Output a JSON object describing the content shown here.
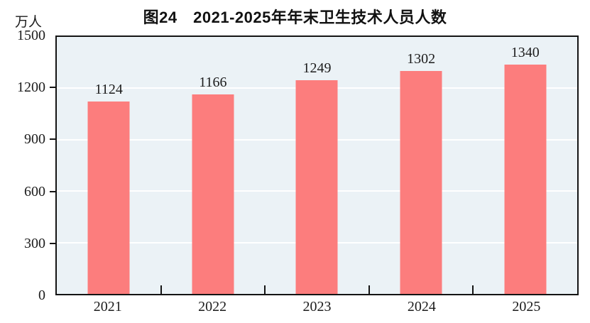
{
  "figure": {
    "title": "图24　2021-2025年年末卫生技术人员人数",
    "unit_label": "万人"
  },
  "chart_data": {
    "type": "bar",
    "title": "图24　2021-2025年年末卫生技术人员人数",
    "categories": [
      "2021",
      "2022",
      "2023",
      "2024",
      "2025"
    ],
    "values": [
      1124,
      1166,
      1249,
      1302,
      1340
    ],
    "data_labels": [
      "1124",
      "1166",
      "1249",
      "1302",
      "1340"
    ],
    "xlabel": "",
    "ylabel": "万人",
    "ylim": [
      0,
      1500
    ],
    "yticks": [
      0,
      300,
      600,
      900,
      1200,
      1500
    ],
    "grid": "horizontal",
    "legend": "none",
    "colors": {
      "bar": "#FC7D7D",
      "plot_background": "#EBF2F6",
      "gridline": "#FFFFFF",
      "axis": "#141414",
      "text": "#1A1A1A",
      "page_background": "#FFFFFF"
    }
  }
}
